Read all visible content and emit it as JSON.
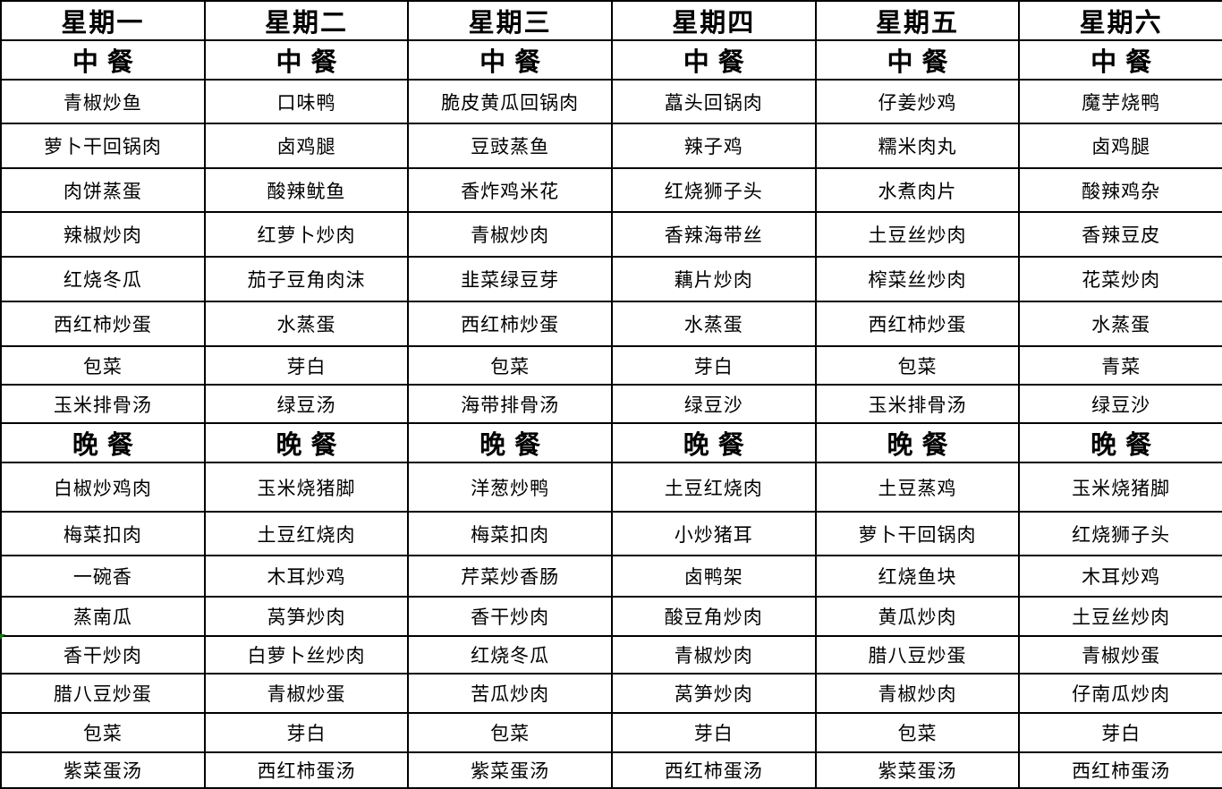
{
  "menu": {
    "columns": [
      {
        "day": "星期一",
        "lunch_header": "中餐",
        "dinner_header": "晚餐",
        "lunch": [
          "青椒炒鱼",
          "萝卜干回锅肉",
          "肉饼蒸蛋",
          "辣椒炒肉",
          "红烧冬瓜",
          "西红柿炒蛋",
          "包菜",
          "玉米排骨汤"
        ],
        "dinner": [
          "白椒炒鸡肉",
          "梅菜扣肉",
          "一碗香",
          "蒸南瓜",
          "香干炒肉",
          "腊八豆炒蛋",
          "包菜",
          "紫菜蛋汤"
        ]
      },
      {
        "day": "星期二",
        "lunch_header": "中餐",
        "dinner_header": "晚餐",
        "lunch": [
          "口味鸭",
          "卤鸡腿",
          "酸辣鱿鱼",
          "红萝卜炒肉",
          "茄子豆角肉沫",
          "水蒸蛋",
          "芽白",
          "绿豆汤"
        ],
        "dinner": [
          "玉米烧猪脚",
          "土豆红烧肉",
          "木耳炒鸡",
          "莴笋炒肉",
          "白萝卜丝炒肉",
          "青椒炒蛋",
          "芽白",
          "西红柿蛋汤"
        ]
      },
      {
        "day": "星期三",
        "lunch_header": "中餐",
        "dinner_header": "晚餐",
        "lunch": [
          "脆皮黄瓜回锅肉",
          "豆豉蒸鱼",
          "香炸鸡米花",
          "青椒炒肉",
          "韭菜绿豆芽",
          "西红柿炒蛋",
          "包菜",
          "海带排骨汤"
        ],
        "dinner": [
          "洋葱炒鸭",
          "梅菜扣肉",
          "芹菜炒香肠",
          "香干炒肉",
          "红烧冬瓜",
          "苦瓜炒肉",
          "包菜",
          "紫菜蛋汤"
        ]
      },
      {
        "day": "星期四",
        "lunch_header": "中餐",
        "dinner_header": "晚餐",
        "lunch": [
          "藠头回锅肉",
          "辣子鸡",
          "红烧狮子头",
          "香辣海带丝",
          "藕片炒肉",
          "水蒸蛋",
          "芽白",
          "绿豆沙"
        ],
        "dinner": [
          "土豆红烧肉",
          "小炒猪耳",
          "卤鸭架",
          "酸豆角炒肉",
          "青椒炒肉",
          "莴笋炒肉",
          "芽白",
          "西红柿蛋汤"
        ]
      },
      {
        "day": "星期五",
        "lunch_header": "中餐",
        "dinner_header": "晚餐",
        "lunch": [
          "仔姜炒鸡",
          "糯米肉丸",
          "水煮肉片",
          "土豆丝炒肉",
          "榨菜丝炒肉",
          "西红柿炒蛋",
          "包菜",
          "玉米排骨汤"
        ],
        "dinner": [
          "土豆蒸鸡",
          "萝卜干回锅肉",
          "红烧鱼块",
          "黄瓜炒肉",
          "腊八豆炒蛋",
          "青椒炒肉",
          "包菜",
          "紫菜蛋汤"
        ]
      },
      {
        "day": "星期六",
        "lunch_header": "中餐",
        "dinner_header": "晚餐",
        "lunch": [
          "魔芋烧鸭",
          "卤鸡腿",
          "酸辣鸡杂",
          "香辣豆皮",
          "花菜炒肉",
          "水蒸蛋",
          "青菜",
          "绿豆沙"
        ],
        "dinner": [
          "玉米烧猪脚",
          "红烧狮子头",
          "木耳炒鸡",
          "土豆丝炒肉",
          "青椒炒蛋",
          "仔南瓜炒肉",
          "芽白",
          "西红柿蛋汤"
        ]
      }
    ]
  },
  "icons": {
    "corner_flag": "green-corner-triangle"
  },
  "colors": {
    "border": "#000000",
    "background": "#ffffff",
    "text": "#000000",
    "comment_flag_green": "#0f7b0f"
  }
}
